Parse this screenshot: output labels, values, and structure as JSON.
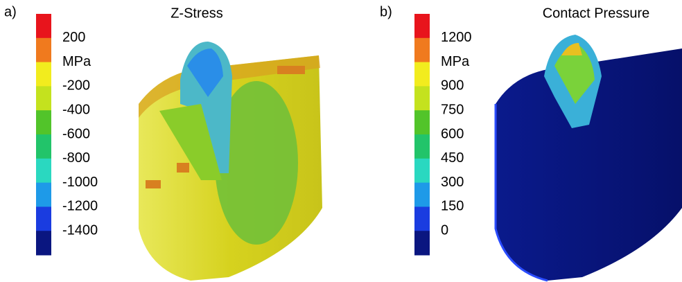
{
  "panels": [
    {
      "label": "a)",
      "title": "Z-Stress",
      "scale_labels": [
        "200",
        "MPa",
        "-200",
        "-400",
        "-600",
        "-800",
        "-1000",
        "-1200",
        "-1400"
      ]
    },
    {
      "label": "b)",
      "title": "Contact Pressure",
      "scale_labels": [
        "1200",
        "MPa",
        "900",
        "750",
        "600",
        "450",
        "300",
        "150",
        "0"
      ]
    }
  ]
}
